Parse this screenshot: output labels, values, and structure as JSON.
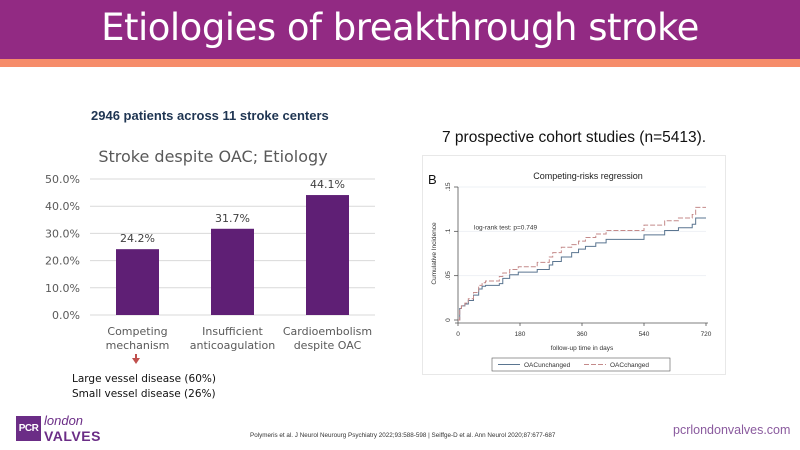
{
  "header": {
    "title": "Etiologies of breakthrough stroke",
    "colors": {
      "band": "#922a83",
      "stripe": "#f68c6a"
    }
  },
  "left_panel": {
    "subtitle": "2946 patients across 11 stroke centers",
    "notes": [
      "Large vessel disease (60%)",
      "Small vessel disease (26%)"
    ]
  },
  "right_panel": {
    "title": "7 prospective cohort studies (n=5413)."
  },
  "footer": {
    "logo_box": "PCR",
    "logo_line1": "london",
    "logo_line2": "VALVES",
    "citation": "Polymeris et al. J Neurol Neurourg Psychiatry 2022;93:588-598 | Seiffge-D et al. Ann Neurol 2020;87:677-687",
    "website": "pcrlondonvalves.com"
  },
  "chart_data": [
    {
      "type": "bar",
      "title": "Stroke despite OAC; Etiology",
      "categories": [
        [
          "Competing",
          "mechanism"
        ],
        [
          "Insufficient",
          "anticoagulation"
        ],
        [
          "Cardioembolism",
          "despite OAC"
        ]
      ],
      "values": [
        24.2,
        31.7,
        44.1
      ],
      "data_labels": [
        "24.2%",
        "31.7%",
        "44.1%"
      ],
      "ylim": [
        0,
        50
      ],
      "yticks": [
        0,
        10,
        20,
        30,
        40,
        50
      ],
      "ytick_labels": [
        "0.0%",
        "10.0%",
        "20.0%",
        "30.0%",
        "40.0%",
        "50.0%"
      ],
      "grid": true,
      "color": "#5f1f75",
      "xlabel": "",
      "ylabel": ""
    },
    {
      "type": "line",
      "panel_label": "B",
      "title": "Competing-risks regression",
      "xlabel": "follow-up time in days",
      "ylabel": "Cumulative Incidence",
      "xlim": [
        0,
        720
      ],
      "ylim": [
        0,
        0.15
      ],
      "xticks": [
        0,
        180,
        360,
        540,
        720
      ],
      "yticks": [
        0,
        0.05,
        0.1,
        0.15
      ],
      "ytick_labels": [
        "0",
        ".05",
        ".1",
        ".15"
      ],
      "grid": true,
      "annotation": "log-rank test: p=0.749",
      "legend_position": "bottom",
      "series": [
        {
          "name": "OACunchanged",
          "color": "#5a7590",
          "dash": "solid",
          "x": [
            0,
            5,
            10,
            20,
            30,
            45,
            60,
            70,
            80,
            120,
            130,
            150,
            175,
            230,
            265,
            275,
            300,
            330,
            350,
            370,
            400,
            430,
            540,
            600,
            640,
            680,
            690,
            720
          ],
          "y": [
            0,
            0.013,
            0.016,
            0.018,
            0.022,
            0.028,
            0.035,
            0.038,
            0.039,
            0.041,
            0.047,
            0.051,
            0.054,
            0.057,
            0.062,
            0.066,
            0.071,
            0.076,
            0.08,
            0.083,
            0.087,
            0.091,
            0.096,
            0.101,
            0.104,
            0.108,
            0.115,
            0.115
          ]
        },
        {
          "name": "OACchanged",
          "color": "#c48a8a",
          "dash": "dashed",
          "x": [
            0,
            5,
            10,
            20,
            30,
            45,
            60,
            70,
            80,
            120,
            130,
            150,
            175,
            230,
            265,
            275,
            300,
            330,
            350,
            370,
            400,
            430,
            540,
            600,
            640,
            680,
            690,
            720
          ],
          "y": [
            0,
            0.013,
            0.016,
            0.019,
            0.024,
            0.031,
            0.039,
            0.042,
            0.044,
            0.049,
            0.053,
            0.057,
            0.06,
            0.065,
            0.071,
            0.076,
            0.082,
            0.085,
            0.089,
            0.093,
            0.097,
            0.101,
            0.107,
            0.112,
            0.115,
            0.119,
            0.127,
            0.127
          ]
        }
      ]
    }
  ]
}
